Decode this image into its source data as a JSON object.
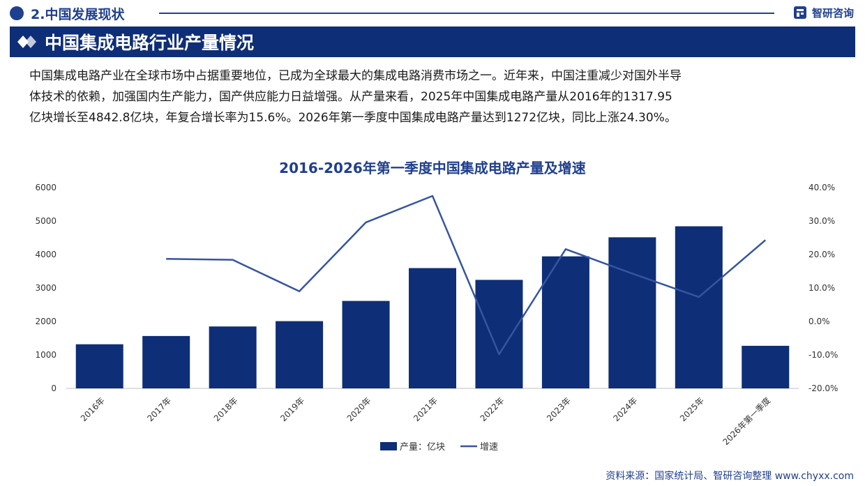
{
  "header": {
    "section_title": "2.中国发展现状",
    "brand": "智研咨询",
    "banner_title": "中国集成电路行业产量情况"
  },
  "intro_lines": [
    "中国集成电路产业在全球市场中占据重要地位，已成为全球最大的集成电路消费市场之一。近年来，中国注重减少对国外半导",
    "体技术的依赖，加强国内生产能力，国产供应能力日益增强。从产量来看，2025年中国集成电路产量从2016年的1317.95",
    "亿块增长至4842.8亿块，年复合增长率为15.6%。2026年第一季度中国集成电路产量达到1272亿块，同比上涨24.30%。"
  ],
  "chart_data": {
    "type": "bar",
    "title": "2016-2026年第一季度中国集成电路产量及增速",
    "categories": [
      "2016年",
      "2017年",
      "2018年",
      "2019年",
      "2020年",
      "2021年",
      "2022年",
      "2023年",
      "2024年",
      "2025年",
      "2026年第一季度"
    ],
    "series": [
      {
        "name": "产量：亿块",
        "type": "bar",
        "axis": "left",
        "values": [
          1318,
          1565,
          1850,
          2009,
          2613,
          3594,
          3242,
          3945,
          4514,
          4843,
          1272
        ]
      },
      {
        "name": "增速",
        "type": "line",
        "axis": "right",
        "values": [
          null,
          18.7,
          18.4,
          9.0,
          29.6,
          37.5,
          -9.8,
          21.6,
          14.3,
          7.3,
          24.3
        ]
      }
    ],
    "y_left": {
      "min": 0,
      "max": 6000,
      "ticks": [
        0,
        1000,
        2000,
        3000,
        4000,
        5000,
        6000
      ]
    },
    "y_right": {
      "min": -20,
      "max": 40,
      "ticks": [
        -20,
        -10,
        0,
        10,
        20,
        30,
        40
      ],
      "tick_labels": [
        "-20.0%",
        "-10.0%",
        "0.0%",
        "10.0%",
        "20.0%",
        "30.0%",
        "40.0%"
      ]
    },
    "legend_position": "bottom",
    "grid": false,
    "colors": {
      "bar": "#0e2e77",
      "line": "#3555a0"
    }
  },
  "source_text": "资料来源：国家统计局、智研咨询整理  www.chyxx.com"
}
